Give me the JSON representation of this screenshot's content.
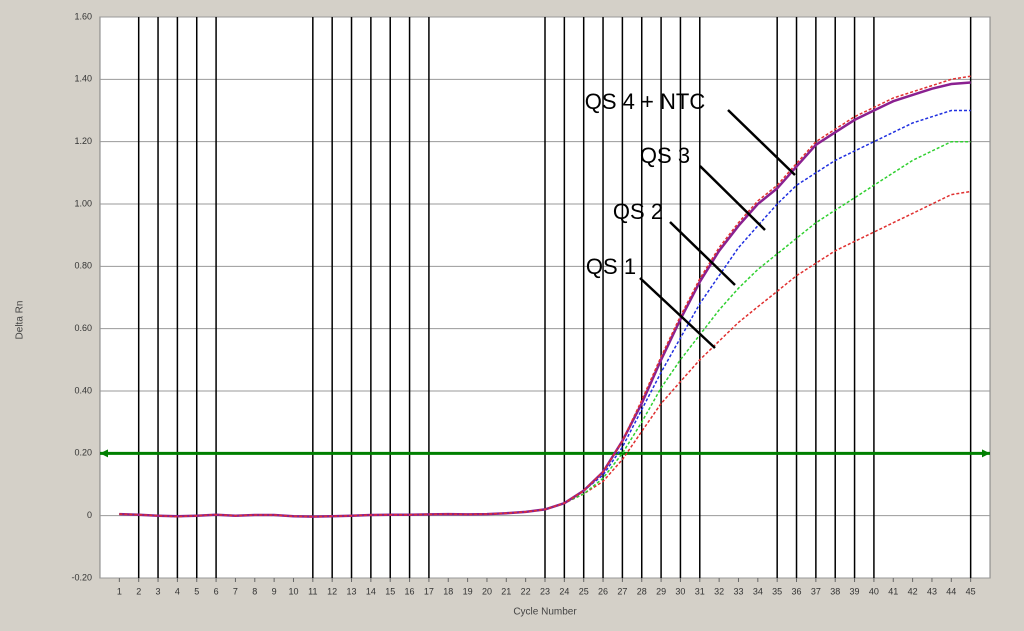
{
  "chart_data": {
    "type": "line",
    "ylabel": "Delta Rn",
    "xlabel": "Cycle Number",
    "x": [
      1,
      2,
      3,
      4,
      5,
      6,
      7,
      8,
      9,
      10,
      11,
      12,
      13,
      14,
      15,
      16,
      17,
      18,
      19,
      20,
      21,
      22,
      23,
      24,
      25,
      26,
      27,
      28,
      29,
      30,
      31,
      32,
      33,
      34,
      35,
      36,
      37,
      38,
      39,
      40,
      41,
      42,
      43,
      44,
      45
    ],
    "xlim": [
      0,
      46
    ],
    "xticks": [
      1,
      2,
      3,
      4,
      5,
      6,
      7,
      8,
      9,
      10,
      11,
      12,
      13,
      14,
      15,
      16,
      17,
      18,
      19,
      20,
      21,
      22,
      23,
      24,
      25,
      26,
      27,
      28,
      29,
      30,
      31,
      32,
      33,
      34,
      35,
      36,
      37,
      38,
      39,
      40,
      41,
      42,
      43,
      44,
      45
    ],
    "ylim": [
      -0.2,
      1.6
    ],
    "yticks": [
      {
        "value": -0.2,
        "label": "-0.20"
      },
      0,
      {
        "value": 0.2,
        "label": "0.20"
      },
      {
        "value": 0.4,
        "label": "0.40"
      },
      {
        "value": 0.6,
        "label": "0.60"
      },
      {
        "value": 0.8,
        "label": "0.80"
      },
      {
        "value": 1.0,
        "label": "1.00"
      },
      {
        "value": 1.2,
        "label": "1.20"
      },
      {
        "value": 1.4,
        "label": "1.40"
      },
      {
        "value": 1.6,
        "label": "1.60"
      }
    ],
    "grid": true,
    "vlines": [
      2,
      3,
      4,
      5,
      6,
      11,
      12,
      13,
      14,
      15,
      16,
      17,
      23,
      24,
      25,
      26,
      27,
      28,
      29,
      30,
      31,
      35,
      36,
      37,
      38,
      39,
      40,
      45
    ],
    "threshold": 0.2,
    "threshold_color": "#008000",
    "series": [
      {
        "name": "QS 1",
        "color": "#e03030",
        "dash": true,
        "values": [
          0.005,
          0.003,
          0,
          -0.003,
          0,
          0.003,
          0,
          0.002,
          0.002,
          -0.002,
          -0.003,
          -0.002,
          0,
          0.002,
          0.003,
          0.003,
          0.004,
          0.005,
          0.004,
          0.005,
          0.008,
          0.012,
          0.02,
          0.04,
          0.07,
          0.11,
          0.18,
          0.27,
          0.36,
          0.43,
          0.5,
          0.56,
          0.62,
          0.67,
          0.72,
          0.77,
          0.81,
          0.85,
          0.88,
          0.91,
          0.94,
          0.97,
          1.0,
          1.03,
          1.04
        ]
      },
      {
        "name": "QS 2",
        "color": "#30d030",
        "dash": true,
        "values": [
          0.004,
          0.002,
          0,
          -0.002,
          0.001,
          0.003,
          0.001,
          0.002,
          0.001,
          -0.002,
          -0.003,
          -0.002,
          -0.001,
          0.002,
          0.003,
          0.003,
          0.004,
          0.005,
          0.004,
          0.005,
          0.008,
          0.012,
          0.02,
          0.04,
          0.07,
          0.12,
          0.2,
          0.3,
          0.41,
          0.5,
          0.58,
          0.66,
          0.73,
          0.79,
          0.84,
          0.89,
          0.94,
          0.98,
          1.02,
          1.06,
          1.1,
          1.14,
          1.17,
          1.2,
          1.2
        ]
      },
      {
        "name": "QS 3",
        "color": "#2030e0",
        "dash": true,
        "values": [
          0.005,
          0.003,
          0,
          -0.003,
          0,
          0.002,
          0,
          0.002,
          0.002,
          -0.002,
          -0.003,
          -0.002,
          0,
          0.002,
          0.003,
          0.003,
          0.004,
          0.006,
          0.004,
          0.005,
          0.008,
          0.012,
          0.02,
          0.04,
          0.08,
          0.13,
          0.22,
          0.34,
          0.46,
          0.57,
          0.68,
          0.77,
          0.86,
          0.93,
          1.0,
          1.06,
          1.1,
          1.14,
          1.17,
          1.2,
          1.23,
          1.26,
          1.28,
          1.3,
          1.3
        ]
      },
      {
        "name": "QS 4 + NTC",
        "color": "#8a2090",
        "dash": false,
        "values": [
          0.005,
          0.003,
          0,
          -0.002,
          0,
          0.003,
          0,
          0.002,
          0.002,
          -0.002,
          -0.003,
          -0.002,
          0,
          0.002,
          0.003,
          0.003,
          0.004,
          0.005,
          0.004,
          0.005,
          0.008,
          0.012,
          0.02,
          0.04,
          0.08,
          0.14,
          0.24,
          0.36,
          0.5,
          0.63,
          0.75,
          0.85,
          0.93,
          1.0,
          1.05,
          1.12,
          1.19,
          1.23,
          1.27,
          1.3,
          1.33,
          1.35,
          1.37,
          1.385,
          1.39
        ]
      },
      {
        "color": "#e03030",
        "dash": true,
        "values": [
          0.005,
          0.003,
          0,
          -0.003,
          0,
          0.003,
          0,
          0.002,
          0.002,
          -0.002,
          -0.003,
          -0.002,
          0,
          0.002,
          0.003,
          0.003,
          0.004,
          0.005,
          0.004,
          0.005,
          0.008,
          0.012,
          0.02,
          0.04,
          0.08,
          0.14,
          0.24,
          0.37,
          0.51,
          0.64,
          0.76,
          0.86,
          0.94,
          1.01,
          1.06,
          1.13,
          1.2,
          1.24,
          1.28,
          1.31,
          1.34,
          1.36,
          1.38,
          1.4,
          1.41
        ]
      }
    ]
  }
}
